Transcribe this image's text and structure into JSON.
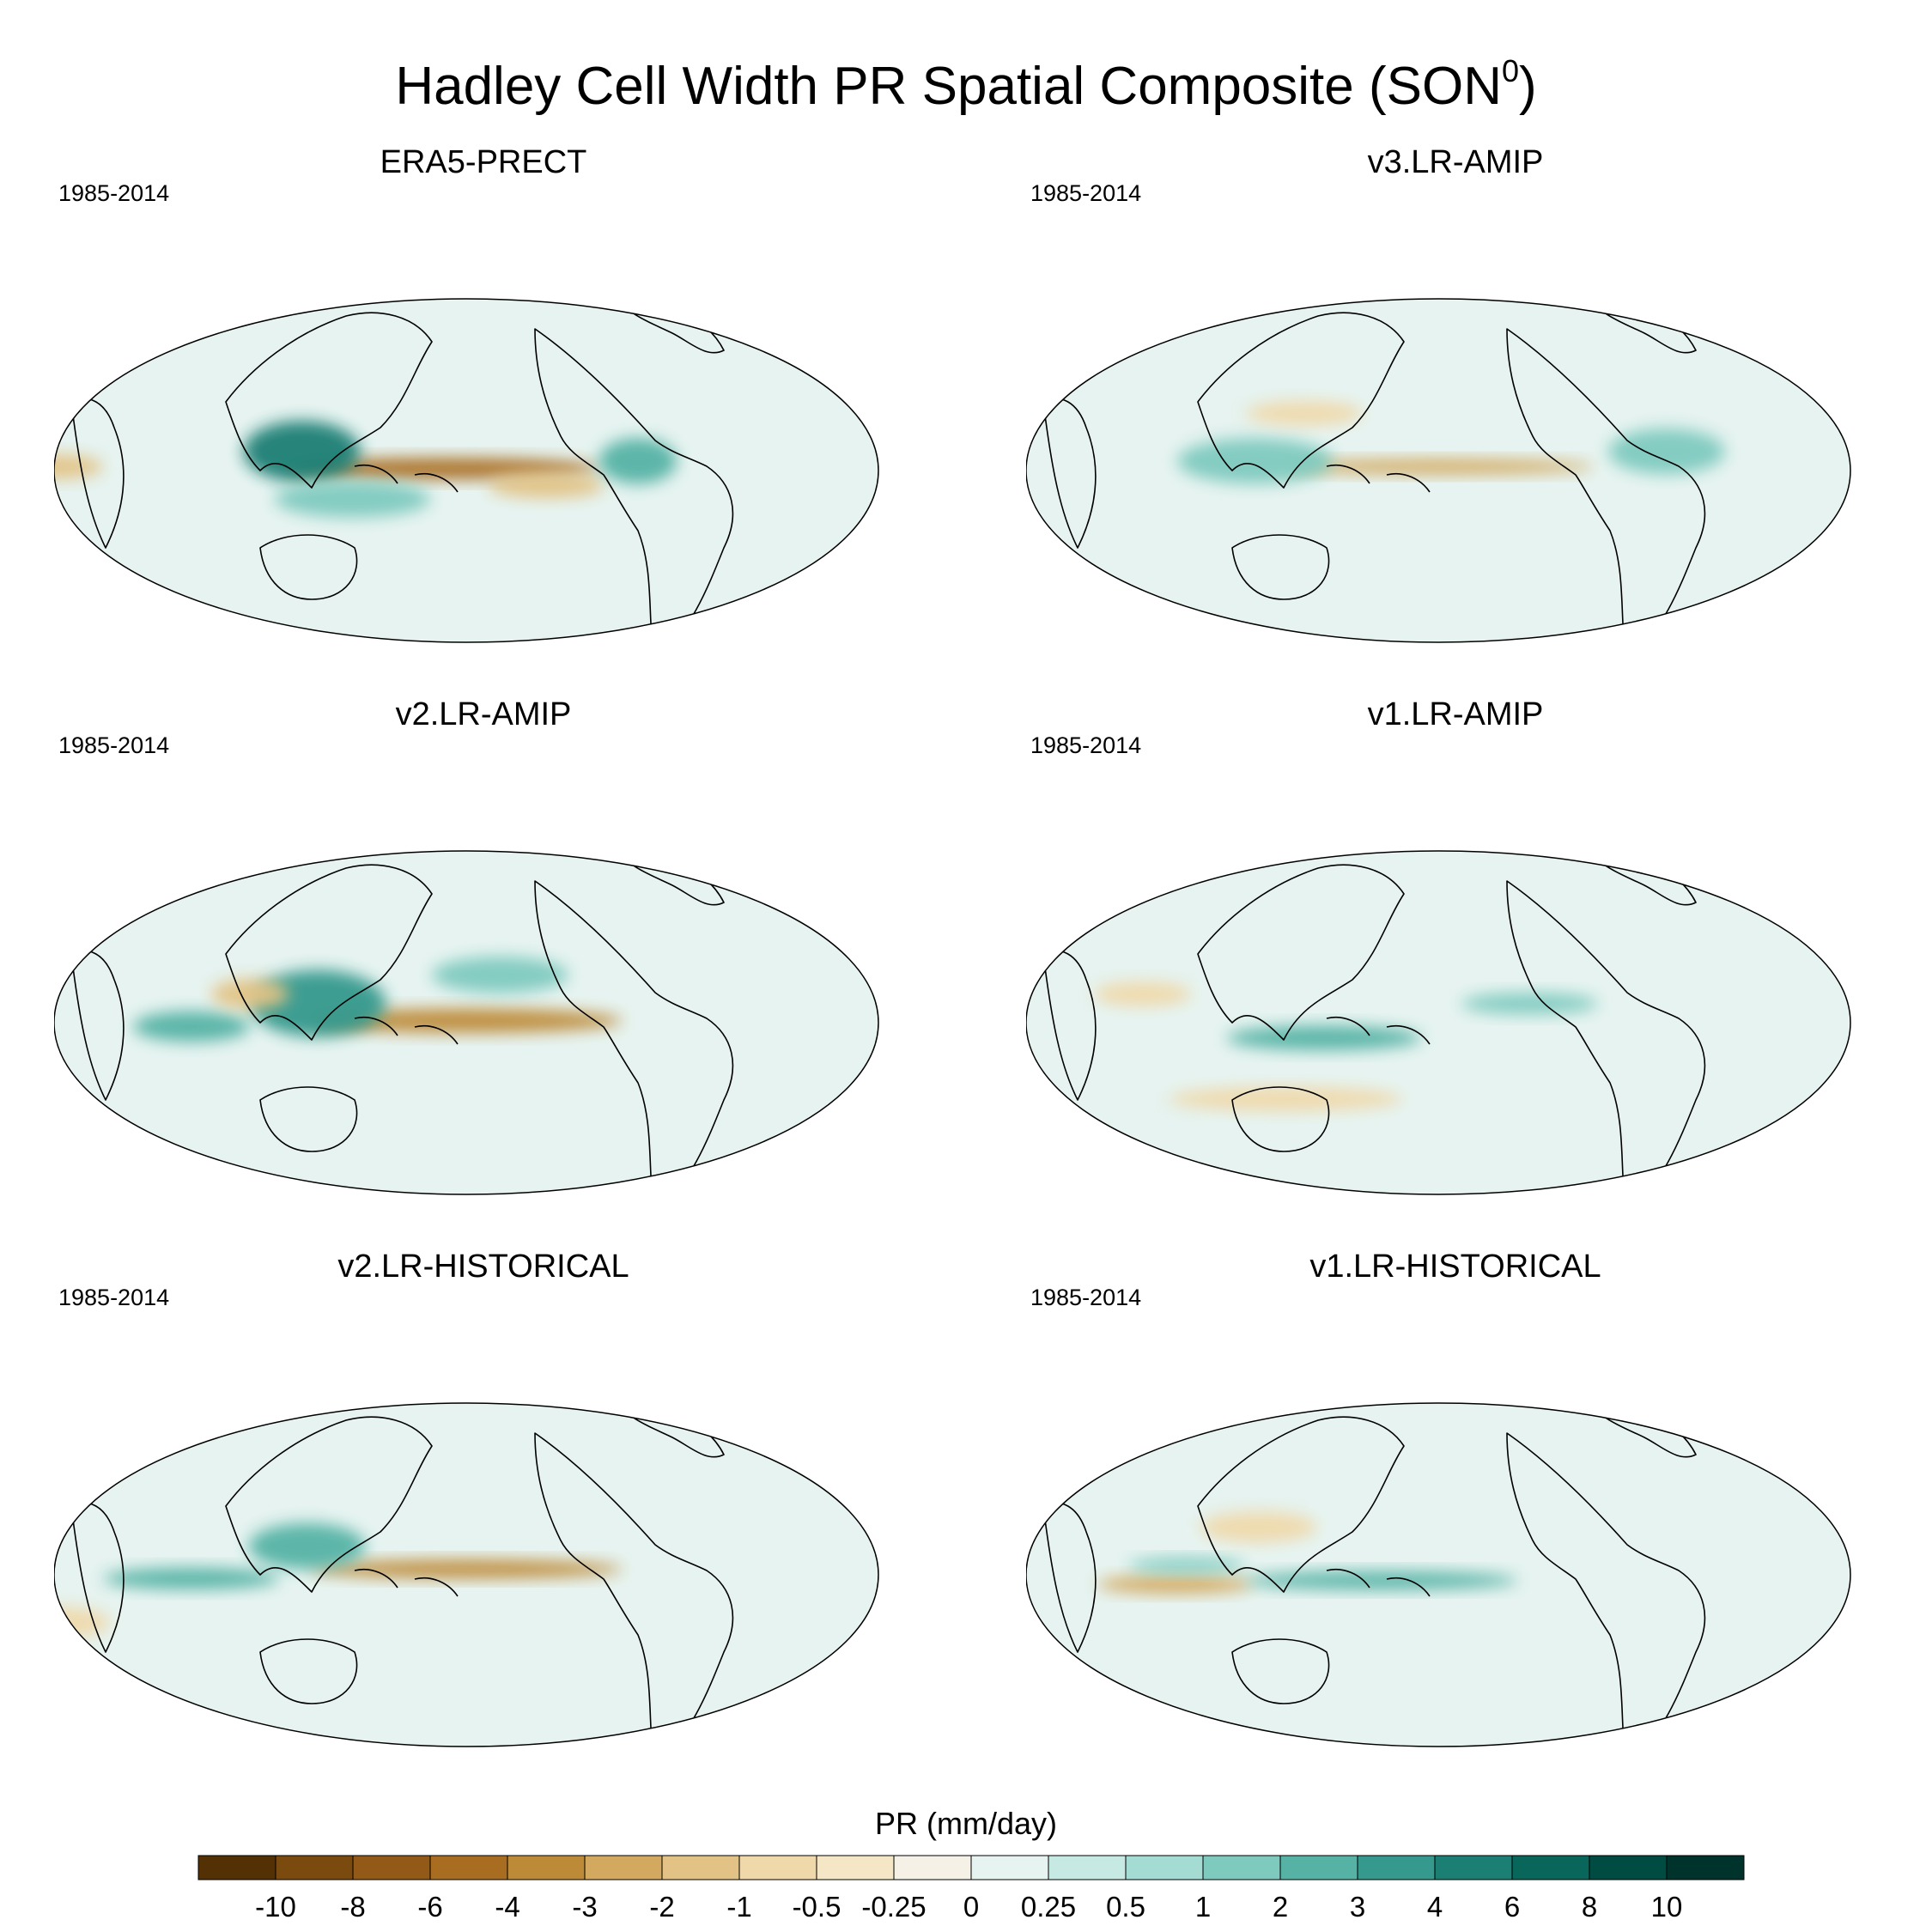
{
  "chart_data": {
    "type": "heatmap",
    "title": "Hadley Cell Width PR Spatial Composite (SON",
    "title_superscript": "0",
    "title_suffix": ")",
    "projection": "Robinson",
    "panels": [
      {
        "name": "ERA5-PRECT",
        "period": "1985-2014",
        "features": [
          {
            "kind": "dry",
            "lon": 190,
            "lat": 1,
            "width_deg": 80,
            "height_deg": 7,
            "value": -6
          },
          {
            "kind": "dry",
            "lon": 235,
            "lat": -8,
            "width_deg": 30,
            "height_deg": 8,
            "value": -2
          },
          {
            "kind": "wet",
            "lon": 128,
            "lat": 10,
            "width_deg": 30,
            "height_deg": 20,
            "value": 4
          },
          {
            "kind": "wet",
            "lon": 150,
            "lat": -15,
            "width_deg": 40,
            "height_deg": 12,
            "value": 1
          },
          {
            "kind": "wet",
            "lon": 275,
            "lat": 5,
            "width_deg": 20,
            "height_deg": 15,
            "value": 2
          },
          {
            "kind": "dry",
            "lon": 20,
            "lat": 2,
            "width_deg": 25,
            "height_deg": 8,
            "value": -2
          }
        ]
      },
      {
        "name": "v3.LR-AMIP",
        "period": "1985-2014",
        "features": [
          {
            "kind": "dry",
            "lon": 200,
            "lat": 2,
            "width_deg": 80,
            "height_deg": 5,
            "value": -3
          },
          {
            "kind": "wet",
            "lon": 120,
            "lat": 5,
            "width_deg": 40,
            "height_deg": 15,
            "value": 1
          },
          {
            "kind": "wet",
            "lon": 300,
            "lat": 10,
            "width_deg": 30,
            "height_deg": 15,
            "value": 1
          },
          {
            "kind": "dry",
            "lon": 140,
            "lat": 30,
            "width_deg": 30,
            "height_deg": 8,
            "value": -1
          }
        ]
      },
      {
        "name": "v2.LR-AMIP",
        "period": "1985-2014",
        "features": [
          {
            "kind": "dry",
            "lon": 200,
            "lat": 1,
            "width_deg": 80,
            "height_deg": 8,
            "value": -4
          },
          {
            "kind": "wet",
            "lon": 135,
            "lat": 10,
            "width_deg": 35,
            "height_deg": 22,
            "value": 3
          },
          {
            "kind": "wet",
            "lon": 80,
            "lat": -2,
            "width_deg": 30,
            "height_deg": 10,
            "value": 2
          },
          {
            "kind": "wet",
            "lon": 215,
            "lat": 25,
            "width_deg": 35,
            "height_deg": 12,
            "value": 1
          },
          {
            "kind": "dry",
            "lon": 105,
            "lat": 15,
            "width_deg": 20,
            "height_deg": 10,
            "value": -2
          }
        ]
      },
      {
        "name": "v1.LR-AMIP",
        "period": "1985-2014",
        "features": [
          {
            "kind": "wet",
            "lon": 150,
            "lat": -8,
            "width_deg": 50,
            "height_deg": 8,
            "value": 2
          },
          {
            "kind": "wet",
            "lon": 240,
            "lat": 10,
            "width_deg": 35,
            "height_deg": 7,
            "value": 1
          },
          {
            "kind": "dry",
            "lon": 130,
            "lat": -40,
            "width_deg": 60,
            "height_deg": 8,
            "value": -1
          },
          {
            "kind": "dry",
            "lon": 70,
            "lat": 15,
            "width_deg": 25,
            "height_deg": 8,
            "value": -1
          }
        ]
      },
      {
        "name": "v2.LR-HISTORICAL",
        "period": "1985-2014",
        "features": [
          {
            "kind": "dry",
            "lon": 200,
            "lat": 3,
            "width_deg": 80,
            "height_deg": 6,
            "value": -4
          },
          {
            "kind": "wet",
            "lon": 80,
            "lat": -2,
            "width_deg": 45,
            "height_deg": 7,
            "value": 2
          },
          {
            "kind": "wet",
            "lon": 130,
            "lat": 15,
            "width_deg": 30,
            "height_deg": 15,
            "value": 2
          },
          {
            "kind": "dry",
            "lon": 20,
            "lat": -25,
            "width_deg": 25,
            "height_deg": 10,
            "value": -1
          }
        ]
      },
      {
        "name": "v1.LR-HISTORICAL",
        "period": "1985-2014",
        "features": [
          {
            "kind": "dry",
            "lon": 85,
            "lat": -5,
            "width_deg": 40,
            "height_deg": 6,
            "value": -3
          },
          {
            "kind": "wet",
            "lon": 175,
            "lat": -3,
            "width_deg": 70,
            "height_deg": 6,
            "value": 2
          },
          {
            "kind": "wet",
            "lon": 90,
            "lat": 5,
            "width_deg": 30,
            "height_deg": 5,
            "value": 1
          },
          {
            "kind": "dry",
            "lon": 120,
            "lat": 25,
            "width_deg": 30,
            "height_deg": 10,
            "value": -1
          }
        ]
      }
    ],
    "colorbar": {
      "label": "PR (mm/day)",
      "levels": [
        "-10",
        "-8",
        "-6",
        "-4",
        "-3",
        "-2",
        "-1",
        "-0.5",
        "-0.25",
        "0",
        "0.25",
        "0.5",
        "1",
        "2",
        "3",
        "4",
        "6",
        "8",
        "10"
      ],
      "colors": [
        "#543005",
        "#7b4a0e",
        "#935916",
        "#a96d22",
        "#bd8a37",
        "#d2a95e",
        "#e2c385",
        "#efd9aa",
        "#f5e7c6",
        "#f6f1e7",
        "#e6f3f0",
        "#c7e9e3",
        "#a4dcd3",
        "#7fcabf",
        "#55b2a5",
        "#35998d",
        "#1b7f74",
        "#08665b",
        "#014c42",
        "#00332b"
      ]
    }
  }
}
